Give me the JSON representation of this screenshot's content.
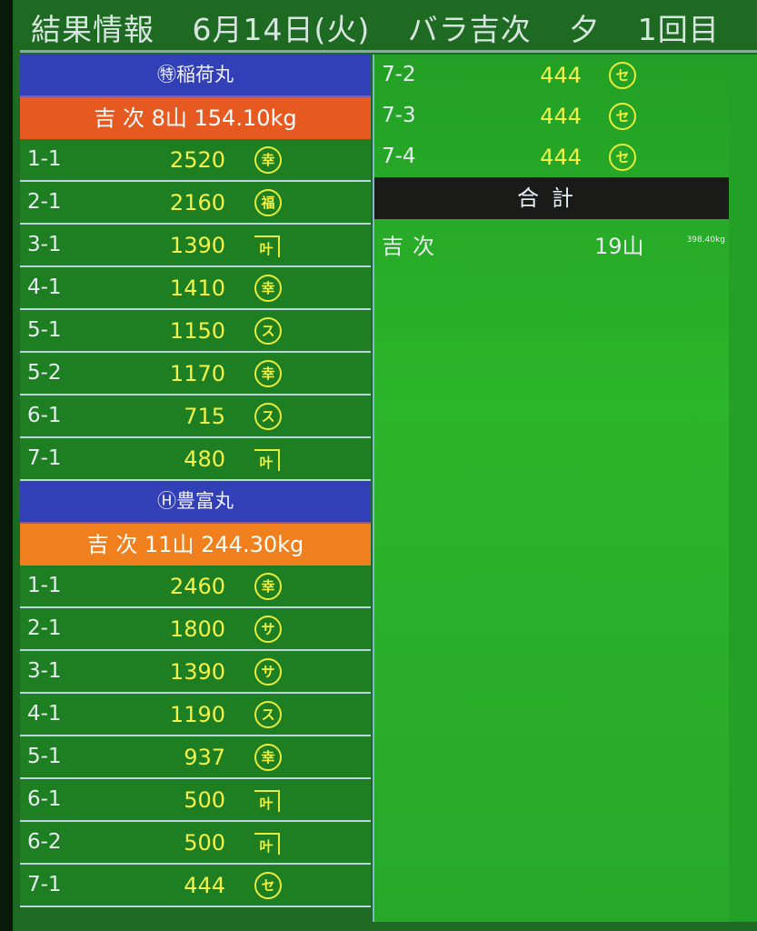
{
  "header": {
    "title": "結果情報",
    "date": "6月14日(火)",
    "category": "バラ吉次",
    "session": "夕",
    "round": "1回目"
  },
  "colors": {
    "background": "#1f6a22",
    "boat_header": "#3240b8",
    "summary": "#e65a22",
    "price": "#f2f24a",
    "total_header": "#1a1a18"
  },
  "boats": [
    {
      "name": "㊕稲荷丸",
      "summary": "吉 次 8山 154.10kg",
      "lots": [
        {
          "lot": "1-1",
          "price": "2520",
          "mark": "幸",
          "mark_style": "circle"
        },
        {
          "lot": "2-1",
          "price": "2160",
          "mark": "福",
          "mark_style": "circle"
        },
        {
          "lot": "3-1",
          "price": "1390",
          "mark": "叶",
          "mark_style": "kane"
        },
        {
          "lot": "4-1",
          "price": "1410",
          "mark": "幸",
          "mark_style": "circle"
        },
        {
          "lot": "5-1",
          "price": "1150",
          "mark": "ス",
          "mark_style": "circle"
        },
        {
          "lot": "5-2",
          "price": "1170",
          "mark": "幸",
          "mark_style": "circle"
        },
        {
          "lot": "6-1",
          "price": "715",
          "mark": "ス",
          "mark_style": "circle"
        },
        {
          "lot": "7-1",
          "price": "480",
          "mark": "叶",
          "mark_style": "kane"
        }
      ]
    },
    {
      "name": "Ⓗ豊富丸",
      "summary": "吉 次 11山 244.30kg",
      "lots": [
        {
          "lot": "1-1",
          "price": "2460",
          "mark": "幸",
          "mark_style": "circle"
        },
        {
          "lot": "2-1",
          "price": "1800",
          "mark": "サ",
          "mark_style": "circle"
        },
        {
          "lot": "3-1",
          "price": "1390",
          "mark": "サ",
          "mark_style": "circle"
        },
        {
          "lot": "4-1",
          "price": "1190",
          "mark": "ス",
          "mark_style": "circle"
        },
        {
          "lot": "5-1",
          "price": "937",
          "mark": "幸",
          "mark_style": "circle"
        },
        {
          "lot": "6-1",
          "price": "500",
          "mark": "叶",
          "mark_style": "kane"
        },
        {
          "lot": "6-2",
          "price": "500",
          "mark": "叶",
          "mark_style": "kane"
        },
        {
          "lot": "7-1",
          "price": "444",
          "mark": "セ",
          "mark_style": "circle"
        }
      ]
    },
    {
      "lots": [
        {
          "lot": "7-2",
          "price": "444",
          "mark": "セ",
          "mark_style": "circle"
        },
        {
          "lot": "7-3",
          "price": "444",
          "mark": "セ",
          "mark_style": "circle"
        },
        {
          "lot": "7-4",
          "price": "444",
          "mark": "セ",
          "mark_style": "circle"
        }
      ]
    }
  ],
  "total": {
    "label": "合計",
    "buyer": "吉次",
    "count": "19山",
    "weight": "398.40kg"
  }
}
